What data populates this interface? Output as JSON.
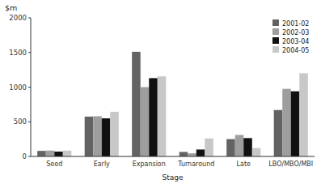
{
  "chart_data": {
    "type": "bar",
    "title": "$m",
    "xlabel": "Stage",
    "categories": [
      "Seed",
      "Early",
      "Expansion",
      "Turnaround",
      "Late",
      "LBO/MBO/MBI"
    ],
    "series": [
      {
        "name": "2001-02",
        "color": "#636363",
        "values": [
          80,
          575,
          1510,
          65,
          250,
          670
        ]
      },
      {
        "name": "2002-03",
        "color": "#9e9e9e",
        "values": [
          85,
          580,
          1000,
          45,
          310,
          975
        ]
      },
      {
        "name": "2003-04",
        "color": "#111111",
        "values": [
          70,
          550,
          1130,
          100,
          265,
          940
        ]
      },
      {
        "name": "2004-05",
        "color": "#c8c8c8",
        "values": [
          85,
          645,
          1155,
          260,
          120,
          1200
        ]
      }
    ],
    "ylim": [
      0,
      2000
    ],
    "yticks": [
      0,
      500,
      1000,
      1500,
      2000
    ],
    "grid": false,
    "legend": "upper right"
  }
}
